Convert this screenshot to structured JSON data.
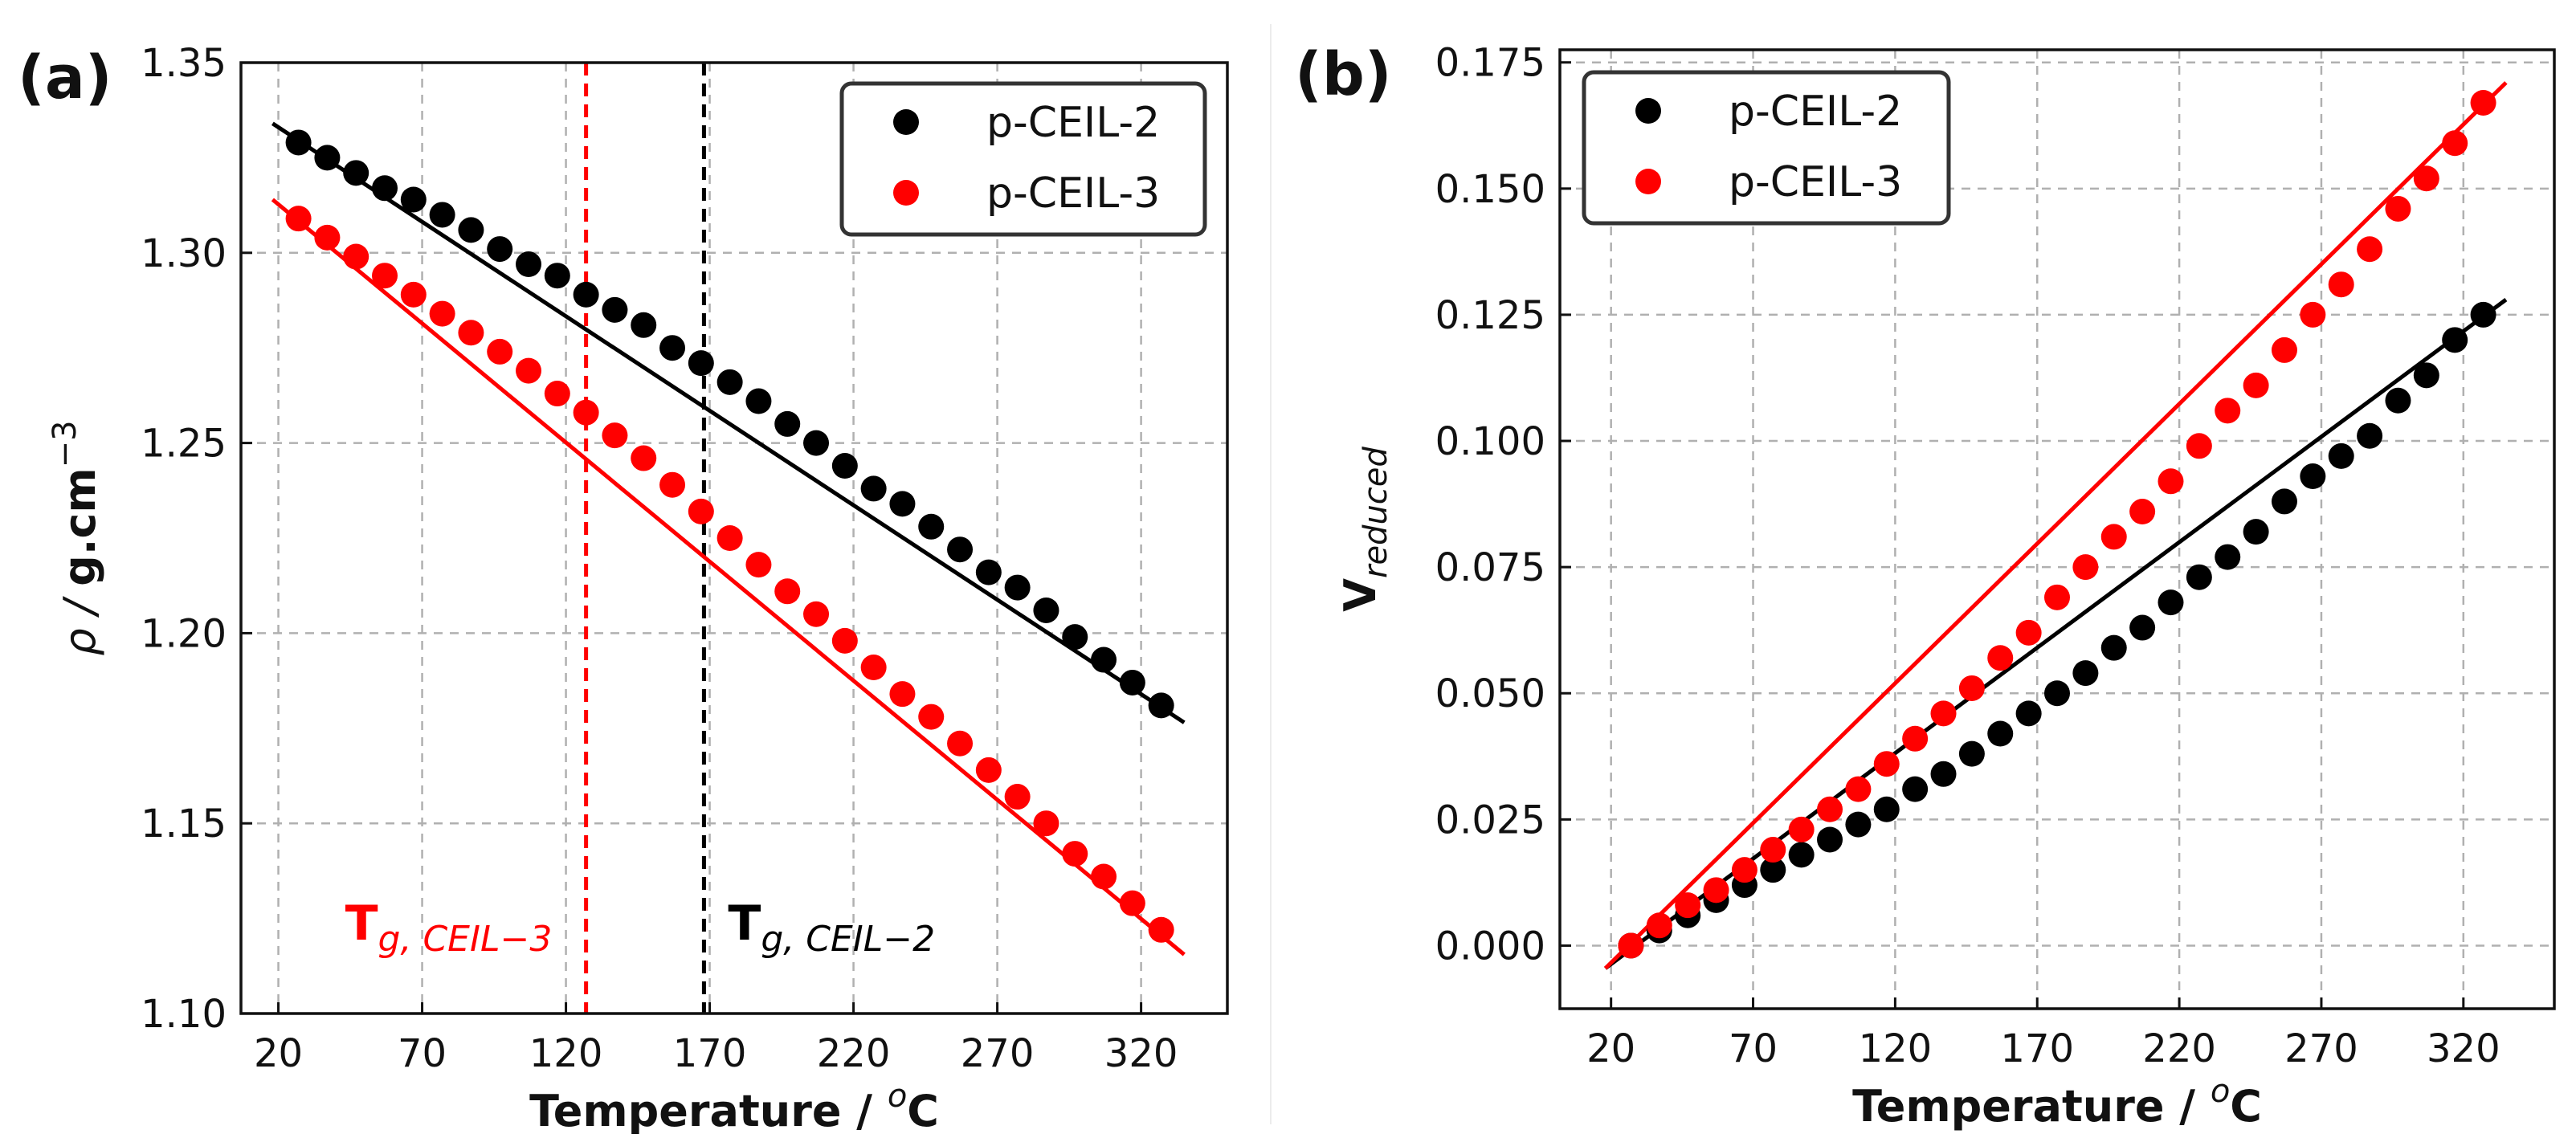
{
  "chart_data": [
    {
      "panel_label": "(a)",
      "type": "line",
      "xlabel": "Temperature / ",
      "xlabel_unit_base": "C",
      "xlabel_unit_sup": "o",
      "ylabel": "ρ / ",
      "ylabel_unit": "g.cm",
      "ylabel_sup": "−3",
      "xlim": [
        7,
        350
      ],
      "ylim": [
        1.1,
        1.35
      ],
      "xticks": [
        20,
        70,
        120,
        170,
        220,
        270,
        320
      ],
      "xtick_labels": [
        "20",
        "70",
        "120",
        "170",
        "220",
        "270",
        "320"
      ],
      "yticks": [
        1.1,
        1.15,
        1.2,
        1.25,
        1.3,
        1.35
      ],
      "ytick_labels": [
        "1.10",
        "1.15",
        "1.20",
        "1.25",
        "1.30",
        "1.35"
      ],
      "grid": true,
      "legend_position": "upper right",
      "series": [
        {
          "name": "p-CEIL-2",
          "color": "#000000",
          "x": [
            27,
            37,
            47,
            57,
            67,
            77,
            87,
            97,
            107,
            117,
            127,
            137,
            147,
            157,
            167,
            177,
            187,
            197,
            207,
            217,
            227,
            237,
            247,
            257,
            267,
            277,
            287,
            297,
            307,
            317,
            327
          ],
          "y": [
            1.329,
            1.325,
            1.321,
            1.317,
            1.314,
            1.31,
            1.306,
            1.301,
            1.297,
            1.294,
            1.289,
            1.285,
            1.281,
            1.275,
            1.271,
            1.266,
            1.261,
            1.255,
            1.25,
            1.244,
            1.238,
            1.234,
            1.228,
            1.222,
            1.216,
            1.212,
            1.206,
            1.199,
            1.193,
            1.187,
            1.181
          ],
          "fit_x": [
            18,
            335
          ],
          "fit_y": [
            1.334,
            1.1765
          ]
        },
        {
          "name": "p-CEIL-3",
          "color": "#ff0000",
          "x": [
            27,
            37,
            47,
            57,
            67,
            77,
            87,
            97,
            107,
            117,
            127,
            137,
            147,
            157,
            167,
            177,
            187,
            197,
            207,
            217,
            227,
            237,
            247,
            257,
            267,
            277,
            287,
            297,
            307,
            317,
            327
          ],
          "y": [
            1.309,
            1.304,
            1.299,
            1.294,
            1.289,
            1.284,
            1.279,
            1.274,
            1.269,
            1.263,
            1.258,
            1.252,
            1.246,
            1.239,
            1.232,
            1.225,
            1.218,
            1.211,
            1.205,
            1.198,
            1.191,
            1.184,
            1.178,
            1.171,
            1.164,
            1.157,
            1.15,
            1.142,
            1.136,
            1.129,
            1.122
          ],
          "fit_x": [
            18,
            335
          ],
          "fit_y": [
            1.314,
            1.1155
          ]
        }
      ],
      "vlines": [
        {
          "x": 127,
          "color": "#ff0000",
          "label_main": "T",
          "label_sub": "g, CEIL−3"
        },
        {
          "x": 168,
          "color": "#000000",
          "label_main": "T",
          "label_sub": "g, CEIL−2"
        }
      ]
    },
    {
      "panel_label": "(b)",
      "type": "line",
      "xlabel": "Temperature / ",
      "xlabel_unit_base": "C",
      "xlabel_unit_sup": "o",
      "ylabel": "V",
      "ylabel_sub": "reduced",
      "xlim": [
        2,
        352
      ],
      "ylim": [
        -0.0125,
        0.1775
      ],
      "xticks": [
        20,
        70,
        120,
        170,
        220,
        270,
        320
      ],
      "xtick_labels": [
        "20",
        "70",
        "120",
        "170",
        "220",
        "270",
        "320"
      ],
      "yticks": [
        0.0,
        0.025,
        0.05,
        0.075,
        0.1,
        0.125,
        0.15,
        0.175
      ],
      "ytick_labels": [
        "0.000",
        "0.025",
        "0.050",
        "0.075",
        "0.100",
        "0.125",
        "0.150",
        "0.175"
      ],
      "grid": true,
      "legend_position": "upper left",
      "series": [
        {
          "name": "p-CEIL-2",
          "color": "#000000",
          "x": [
            27,
            37,
            47,
            57,
            67,
            77,
            87,
            97,
            107,
            117,
            127,
            137,
            147,
            157,
            167,
            177,
            187,
            197,
            207,
            217,
            227,
            237,
            247,
            257,
            267,
            277,
            287,
            297,
            307,
            317,
            327
          ],
          "y": [
            0.0,
            0.003,
            0.006,
            0.009,
            0.012,
            0.015,
            0.018,
            0.021,
            0.024,
            0.027,
            0.031,
            0.034,
            0.038,
            0.042,
            0.046,
            0.05,
            0.054,
            0.059,
            0.063,
            0.068,
            0.073,
            0.077,
            0.082,
            0.088,
            0.093,
            0.097,
            0.101,
            0.108,
            0.113,
            0.12,
            0.125
          ],
          "fit_x": [
            18,
            335
          ],
          "fit_y": [
            -0.0045,
            0.128
          ]
        },
        {
          "name": "p-CEIL-3",
          "color": "#ff0000",
          "x": [
            27,
            37,
            47,
            57,
            67,
            77,
            87,
            97,
            107,
            117,
            127,
            137,
            147,
            157,
            167,
            177,
            187,
            197,
            207,
            217,
            227,
            237,
            247,
            257,
            267,
            277,
            287,
            297,
            307,
            317,
            327
          ],
          "y": [
            0.0,
            0.004,
            0.008,
            0.011,
            0.015,
            0.019,
            0.023,
            0.027,
            0.031,
            0.036,
            0.041,
            0.046,
            0.051,
            0.057,
            0.062,
            0.069,
            0.075,
            0.081,
            0.086,
            0.092,
            0.099,
            0.106,
            0.111,
            0.118,
            0.125,
            0.131,
            0.138,
            0.146,
            0.152,
            0.159,
            0.167
          ],
          "fit_x": [
            18,
            335
          ],
          "fit_y": [
            -0.0045,
            0.171
          ]
        }
      ]
    }
  ]
}
